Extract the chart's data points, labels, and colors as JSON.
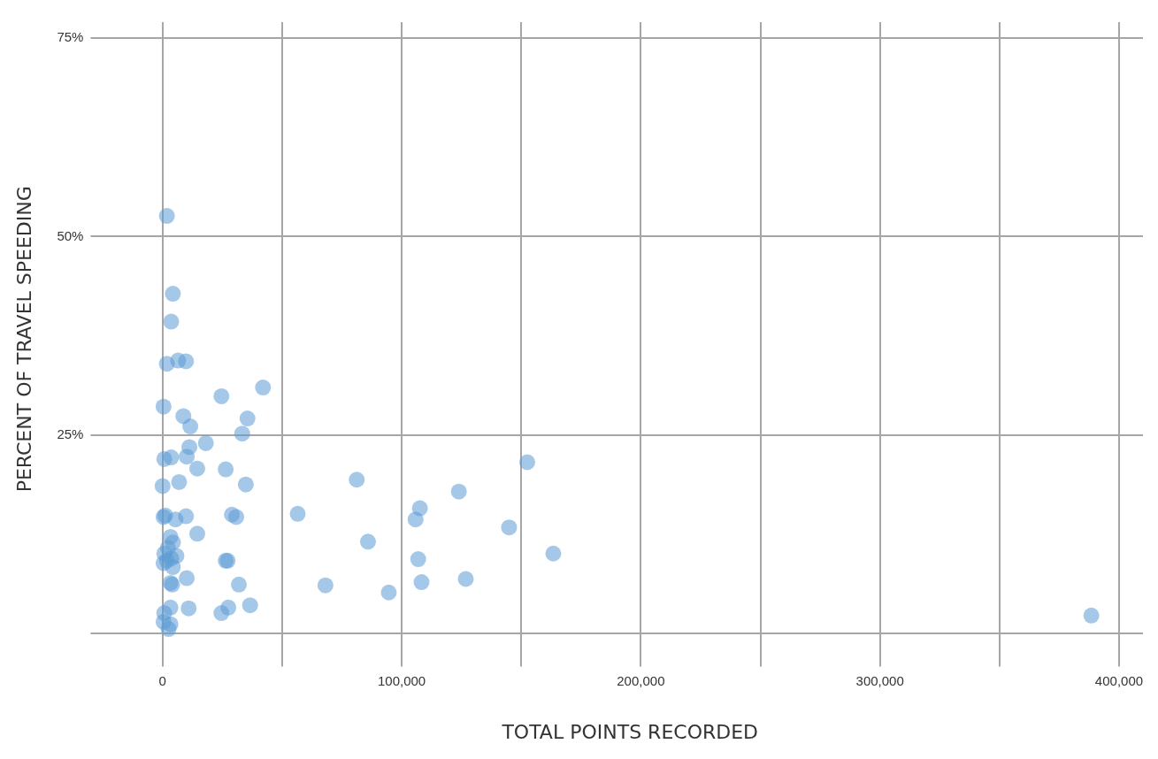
{
  "chart_data": {
    "type": "scatter",
    "xlabel": "TOTAL POINTS RECORDED",
    "ylabel": "PERCENT OF TRAVEL SPEEDING",
    "xlim": [
      -19000,
      410000
    ],
    "ylim": [
      -2.8,
      77
    ],
    "xticks": [
      {
        "value": 0,
        "label": "0"
      },
      {
        "value": 50000,
        "label": null
      },
      {
        "value": 100000,
        "label": "100,000"
      },
      {
        "value": 150000,
        "label": null
      },
      {
        "value": 200000,
        "label": "200,000"
      },
      {
        "value": 250000,
        "label": null
      },
      {
        "value": 300000,
        "label": "300,000"
      },
      {
        "value": 350000,
        "label": null
      },
      {
        "value": 400000,
        "label": "400,000"
      }
    ],
    "yticks": [
      {
        "value": 0,
        "label": null
      },
      {
        "value": 25,
        "label": "25%"
      },
      {
        "value": 50,
        "label": "50%"
      },
      {
        "value": 75,
        "label": "75%"
      }
    ],
    "grid": true,
    "legend": false,
    "marker": "circle",
    "series": [
      {
        "color": "#5b9bd5",
        "x": [
          1800,
          4300,
          3600,
          1800,
          6500,
          9800,
          42000,
          400,
          24600,
          8700,
          11600,
          35500,
          33300,
          18100,
          11200,
          700,
          3600,
          10100,
          14500,
          26400,
          0,
          6900,
          34800,
          1100,
          400,
          5400,
          9800,
          29000,
          30800,
          14500,
          3300,
          4300,
          2200,
          700,
          5800,
          3600,
          1800,
          400,
          4300,
          10100,
          3300,
          4000,
          26400,
          27200,
          31900,
          700,
          400,
          3300,
          2500,
          3300,
          10900,
          24600,
          27500,
          36600,
          56500,
          81200,
          68100,
          94600,
          85900,
          105800,
          107600,
          106900,
          108300,
          123900,
          126800,
          144900,
          152500,
          163400,
          388400
        ],
        "values": [
          52.6,
          42.8,
          39.3,
          34.0,
          34.4,
          34.3,
          31.0,
          28.6,
          29.9,
          27.4,
          26.1,
          27.1,
          25.2,
          24.0,
          23.5,
          22.0,
          22.2,
          22.3,
          20.8,
          20.7,
          18.6,
          19.1,
          18.8,
          14.9,
          14.7,
          14.4,
          14.8,
          15.0,
          14.7,
          12.6,
          12.2,
          11.5,
          10.8,
          10.1,
          9.8,
          9.5,
          9.2,
          8.9,
          8.4,
          7.0,
          6.4,
          6.2,
          9.2,
          9.2,
          6.2,
          2.6,
          1.5,
          1.2,
          0.6,
          3.3,
          3.2,
          2.6,
          3.3,
          3.6,
          15.1,
          19.4,
          6.1,
          5.2,
          11.6,
          14.4,
          15.8,
          9.4,
          6.5,
          17.9,
          6.9,
          13.4,
          21.6,
          10.1,
          2.3
        ]
      }
    ]
  }
}
